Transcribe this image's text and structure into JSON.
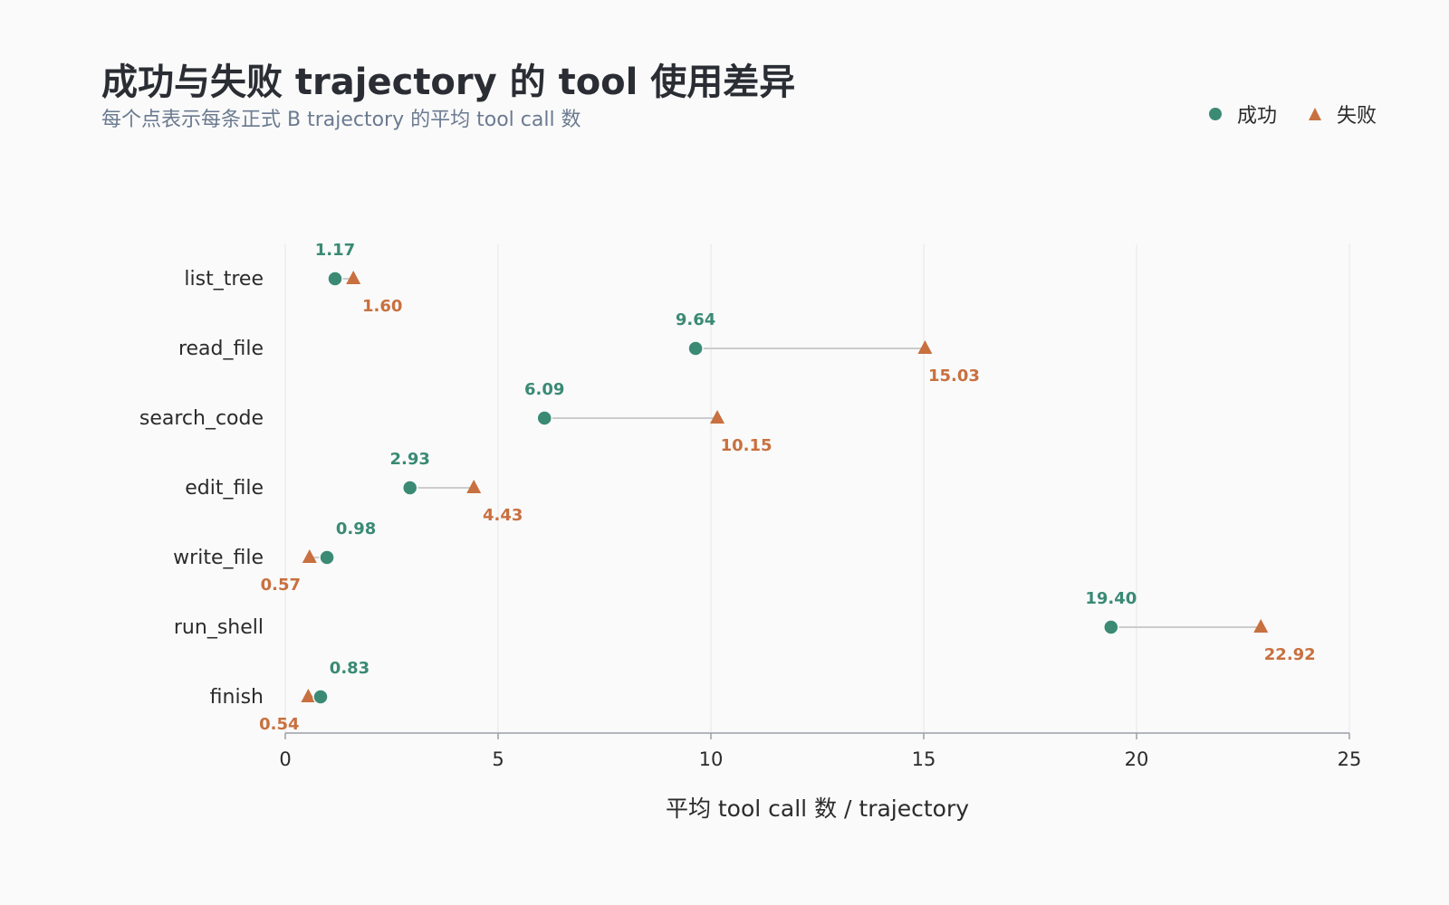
{
  "title": "成功与失败 trajectory 的 tool 使用差异",
  "subtitle": "每个点表示每条正式 B trajectory 的平均 tool call 数",
  "legend": {
    "success_label": "成功",
    "failure_label": "失败"
  },
  "colors": {
    "success": "#3a8a74",
    "failure": "#c8703f",
    "connector": "#cccccc",
    "grid": "#e6e6e6",
    "axis": "#9aa0a8"
  },
  "chart_data": {
    "type": "dot-plot",
    "categories": [
      "list_tree",
      "read_file",
      "search_code",
      "edit_file",
      "write_file",
      "run_shell",
      "finish"
    ],
    "series": [
      {
        "name": "成功",
        "marker": "circle",
        "values": [
          1.17,
          9.64,
          6.09,
          2.93,
          0.98,
          19.4,
          0.83
        ]
      },
      {
        "name": "失败",
        "marker": "triangle",
        "values": [
          1.6,
          15.03,
          10.15,
          4.43,
          0.57,
          22.92,
          0.54
        ]
      }
    ],
    "xlabel": "平均 tool call 数 / trajectory",
    "xlim": [
      0,
      25
    ],
    "xticks": [
      0,
      5,
      10,
      15,
      20,
      25
    ],
    "grid": true,
    "legend_position": "top-right"
  }
}
